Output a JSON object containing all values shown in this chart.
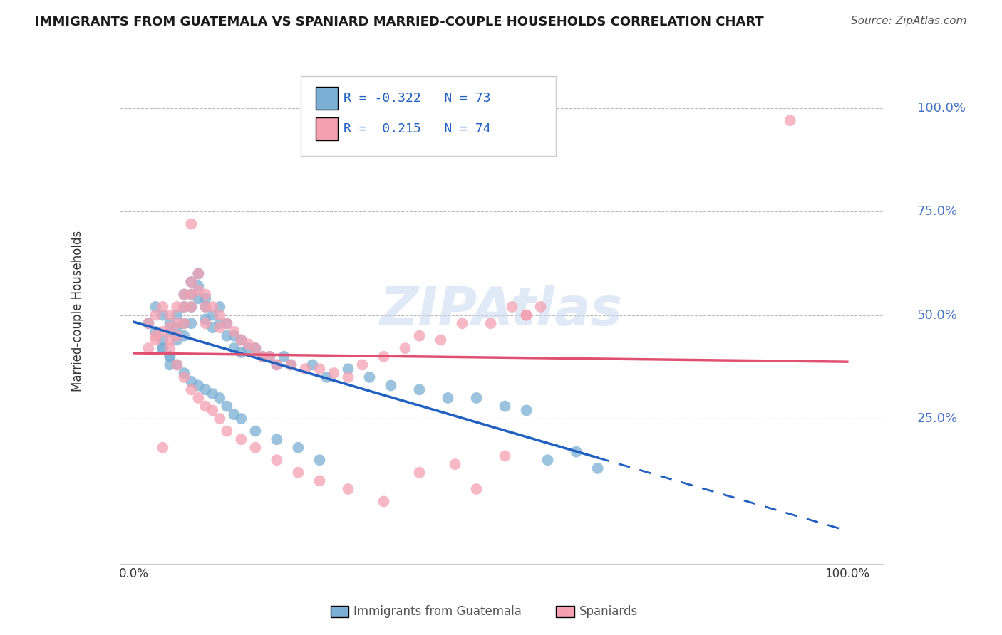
{
  "title": "IMMIGRANTS FROM GUATEMALA VS SPANIARD MARRIED-COUPLE HOUSEHOLDS CORRELATION CHART",
  "source": "Source: ZipAtlas.com",
  "ylabel": "Married-couple Households",
  "blue_R": -0.322,
  "blue_N": 73,
  "pink_R": 0.215,
  "pink_N": 74,
  "blue_color": "#7bafd4",
  "pink_color": "#f4a0b0",
  "blue_line_color": "#2060c0",
  "pink_line_color": "#e05070",
  "ytick_labels": [
    "25.0%",
    "50.0%",
    "75.0%",
    "100.0%"
  ],
  "ytick_values": [
    0.25,
    0.5,
    0.75,
    1.0
  ],
  "blue_scatter_x": [
    0.02,
    0.03,
    0.03,
    0.04,
    0.04,
    0.04,
    0.05,
    0.05,
    0.05,
    0.05,
    0.06,
    0.06,
    0.06,
    0.07,
    0.07,
    0.07,
    0.07,
    0.08,
    0.08,
    0.08,
    0.08,
    0.09,
    0.09,
    0.09,
    0.1,
    0.1,
    0.1,
    0.11,
    0.11,
    0.12,
    0.12,
    0.13,
    0.13,
    0.14,
    0.14,
    0.15,
    0.15,
    0.16,
    0.17,
    0.18,
    0.19,
    0.2,
    0.21,
    0.22,
    0.25,
    0.27,
    0.3,
    0.33,
    0.36,
    0.4,
    0.44,
    0.48,
    0.52,
    0.55,
    0.62,
    0.04,
    0.05,
    0.06,
    0.07,
    0.08,
    0.09,
    0.1,
    0.11,
    0.12,
    0.13,
    0.14,
    0.15,
    0.17,
    0.2,
    0.23,
    0.26,
    0.58,
    0.65
  ],
  "blue_scatter_y": [
    0.48,
    0.52,
    0.46,
    0.5,
    0.44,
    0.42,
    0.48,
    0.46,
    0.4,
    0.38,
    0.5,
    0.47,
    0.44,
    0.55,
    0.52,
    0.48,
    0.45,
    0.58,
    0.55,
    0.52,
    0.48,
    0.6,
    0.57,
    0.54,
    0.54,
    0.52,
    0.49,
    0.5,
    0.47,
    0.52,
    0.48,
    0.48,
    0.45,
    0.45,
    0.42,
    0.44,
    0.41,
    0.42,
    0.42,
    0.4,
    0.4,
    0.38,
    0.4,
    0.38,
    0.38,
    0.35,
    0.37,
    0.35,
    0.33,
    0.32,
    0.3,
    0.3,
    0.28,
    0.27,
    0.17,
    0.42,
    0.4,
    0.38,
    0.36,
    0.34,
    0.33,
    0.32,
    0.31,
    0.3,
    0.28,
    0.26,
    0.25,
    0.22,
    0.2,
    0.18,
    0.15,
    0.15,
    0.13
  ],
  "pink_scatter_x": [
    0.02,
    0.02,
    0.03,
    0.03,
    0.04,
    0.04,
    0.05,
    0.05,
    0.05,
    0.06,
    0.06,
    0.06,
    0.07,
    0.07,
    0.07,
    0.08,
    0.08,
    0.08,
    0.09,
    0.09,
    0.1,
    0.1,
    0.1,
    0.11,
    0.12,
    0.12,
    0.13,
    0.14,
    0.15,
    0.16,
    0.17,
    0.18,
    0.19,
    0.2,
    0.22,
    0.24,
    0.26,
    0.28,
    0.3,
    0.32,
    0.35,
    0.38,
    0.4,
    0.43,
    0.46,
    0.5,
    0.53,
    0.55,
    0.57,
    0.92,
    0.03,
    0.04,
    0.05,
    0.06,
    0.07,
    0.08,
    0.09,
    0.1,
    0.11,
    0.12,
    0.13,
    0.15,
    0.17,
    0.2,
    0.23,
    0.26,
    0.3,
    0.35,
    0.4,
    0.45,
    0.48,
    0.52,
    0.08,
    0.55
  ],
  "pink_scatter_y": [
    0.48,
    0.42,
    0.5,
    0.44,
    0.52,
    0.46,
    0.5,
    0.47,
    0.44,
    0.52,
    0.48,
    0.45,
    0.55,
    0.52,
    0.48,
    0.58,
    0.55,
    0.52,
    0.6,
    0.56,
    0.55,
    0.52,
    0.48,
    0.52,
    0.5,
    0.47,
    0.48,
    0.46,
    0.44,
    0.43,
    0.42,
    0.4,
    0.4,
    0.38,
    0.38,
    0.37,
    0.37,
    0.36,
    0.35,
    0.38,
    0.4,
    0.42,
    0.45,
    0.44,
    0.48,
    0.48,
    0.52,
    0.5,
    0.52,
    0.97,
    0.45,
    0.18,
    0.42,
    0.38,
    0.35,
    0.32,
    0.3,
    0.28,
    0.27,
    0.25,
    0.22,
    0.2,
    0.18,
    0.15,
    0.12,
    0.1,
    0.08,
    0.05,
    0.12,
    0.14,
    0.08,
    0.16,
    0.72,
    0.5
  ]
}
